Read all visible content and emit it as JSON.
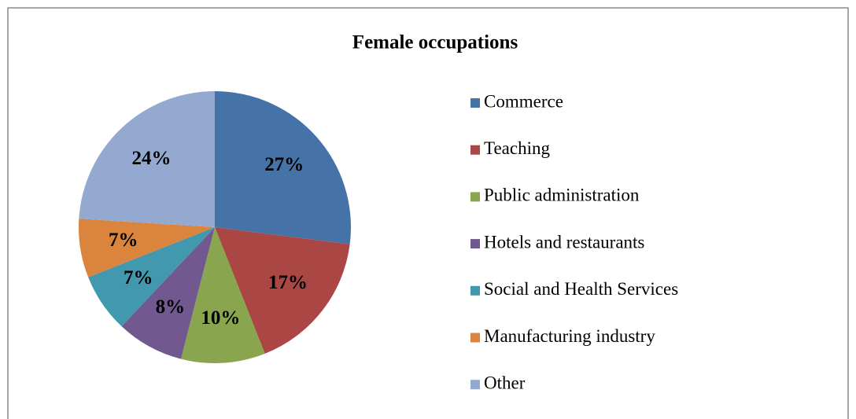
{
  "chart_data": {
    "type": "pie",
    "title": "Female occupations",
    "categories": [
      "Commerce",
      "Teaching",
      "Public administration",
      "Hotels and restaurants",
      "Social and Health Services",
      "Manufacturing industry",
      "Other"
    ],
    "values": [
      27,
      17,
      10,
      8,
      7,
      7,
      24
    ],
    "value_labels": [
      "27%",
      "17%",
      "10%",
      "8%",
      "7%",
      "7%",
      "24%"
    ],
    "colors": [
      "#4572a7",
      "#aa4643",
      "#89a54e",
      "#71588f",
      "#4198af",
      "#db843d",
      "#93a9cf"
    ],
    "legend": "right"
  }
}
